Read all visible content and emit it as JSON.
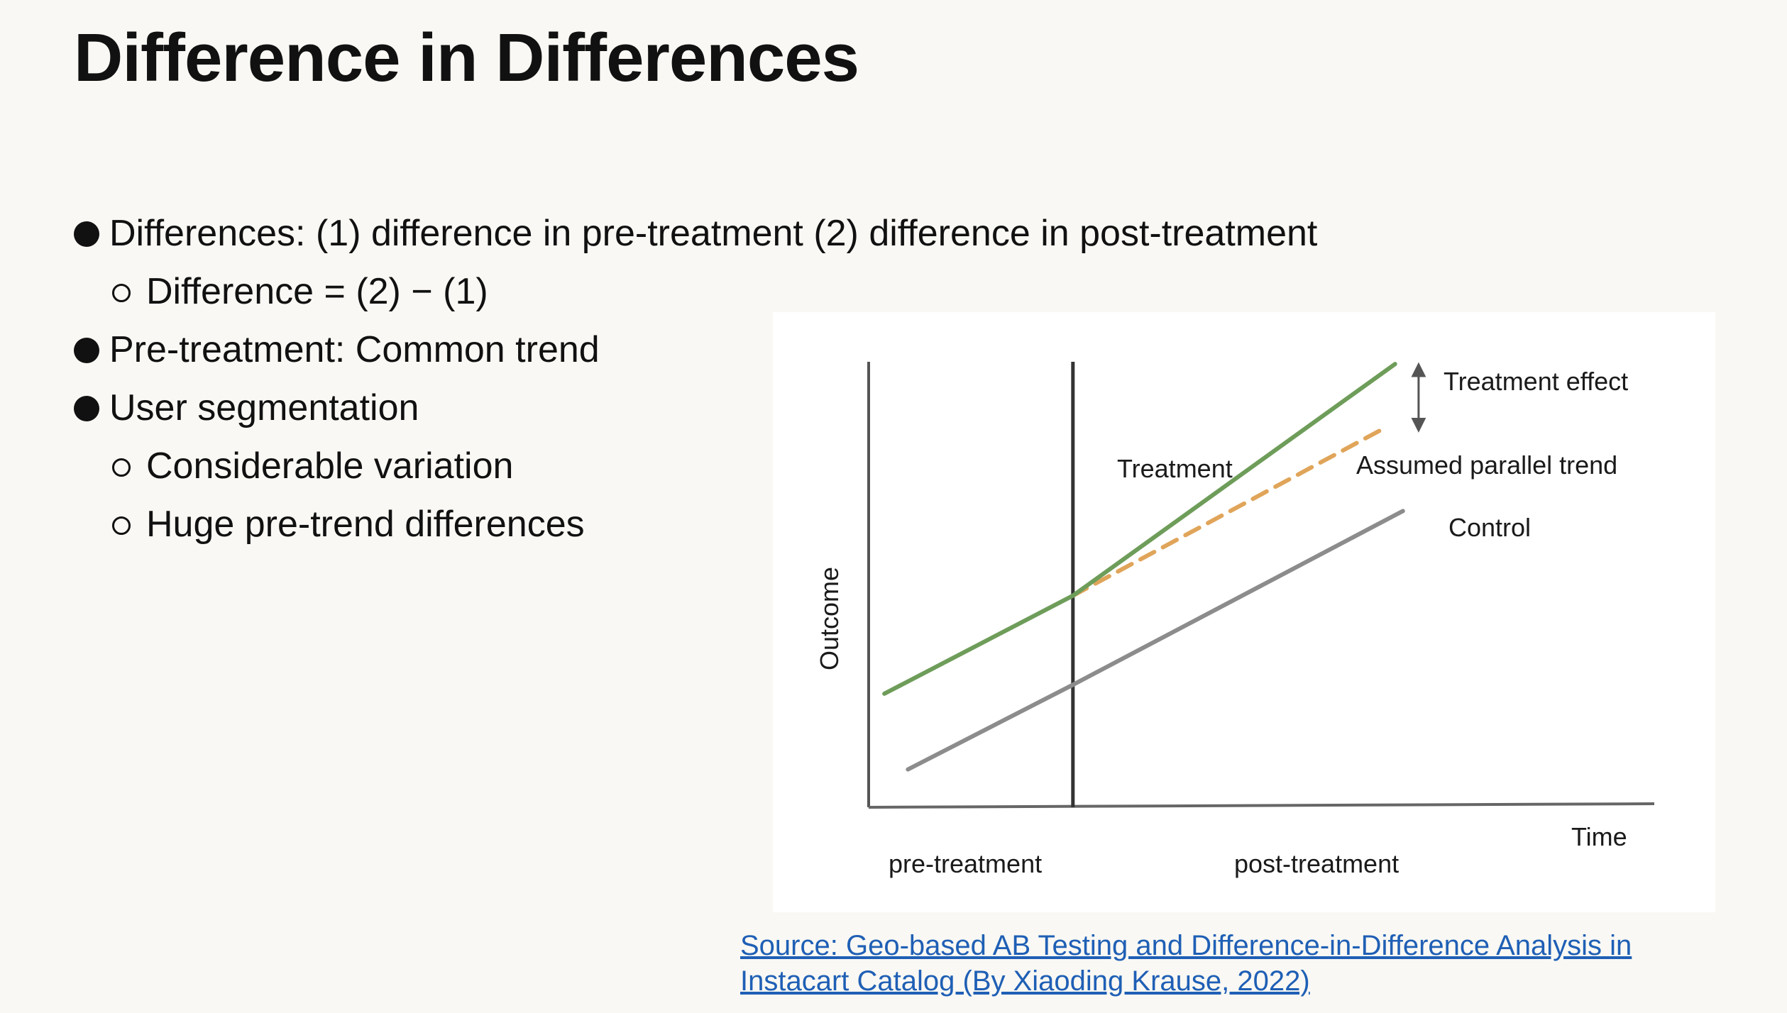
{
  "slide": {
    "title": "Difference in Differences",
    "bullets": [
      {
        "level": 1,
        "text": "Differences: (1) difference in pre-treatment (2) difference in post-treatment"
      },
      {
        "level": 2,
        "text": "Difference = (2) − (1)"
      },
      {
        "level": 1,
        "text": "Pre-treatment: Common trend"
      },
      {
        "level": 1,
        "text": "User segmentation"
      },
      {
        "level": 2,
        "text": "Considerable variation"
      },
      {
        "level": 2,
        "text": "Huge pre-trend differences"
      }
    ],
    "source": {
      "line1": "Source: Geo-based AB Testing and Difference-in-Difference Analysis in",
      "line2": "Instacart Catalog (By Xiaoding Krause, 2022)"
    }
  },
  "chart_data": {
    "type": "line",
    "xlabel": "Time",
    "ylabel": "Outcome",
    "period_labels": [
      "pre-treatment",
      "post-treatment"
    ],
    "intervention_x": 0.26,
    "xlim": [
      0,
      1
    ],
    "ylim": [
      0,
      1
    ],
    "series": [
      {
        "name": "Treatment",
        "color": "#6e9d5a",
        "style": "solid",
        "x": [
          0.02,
          0.26,
          0.67
        ],
        "y": [
          0.255,
          0.475,
          0.995
        ]
      },
      {
        "name": "Control",
        "color": "#8c8c8c",
        "style": "solid",
        "x": [
          0.05,
          0.26,
          0.68
        ],
        "y": [
          0.085,
          0.275,
          0.665
        ]
      },
      {
        "name": "Assumed parallel trend",
        "color": "#e0a55a",
        "style": "dashed",
        "x": [
          0.26,
          0.65
        ],
        "y": [
          0.475,
          0.845
        ]
      }
    ],
    "annotations": [
      {
        "text": "Treatment effect",
        "type": "double-arrow",
        "x": 0.7,
        "y_from": 0.995,
        "y_to": 0.845
      }
    ],
    "grid": false,
    "legend": "none"
  }
}
